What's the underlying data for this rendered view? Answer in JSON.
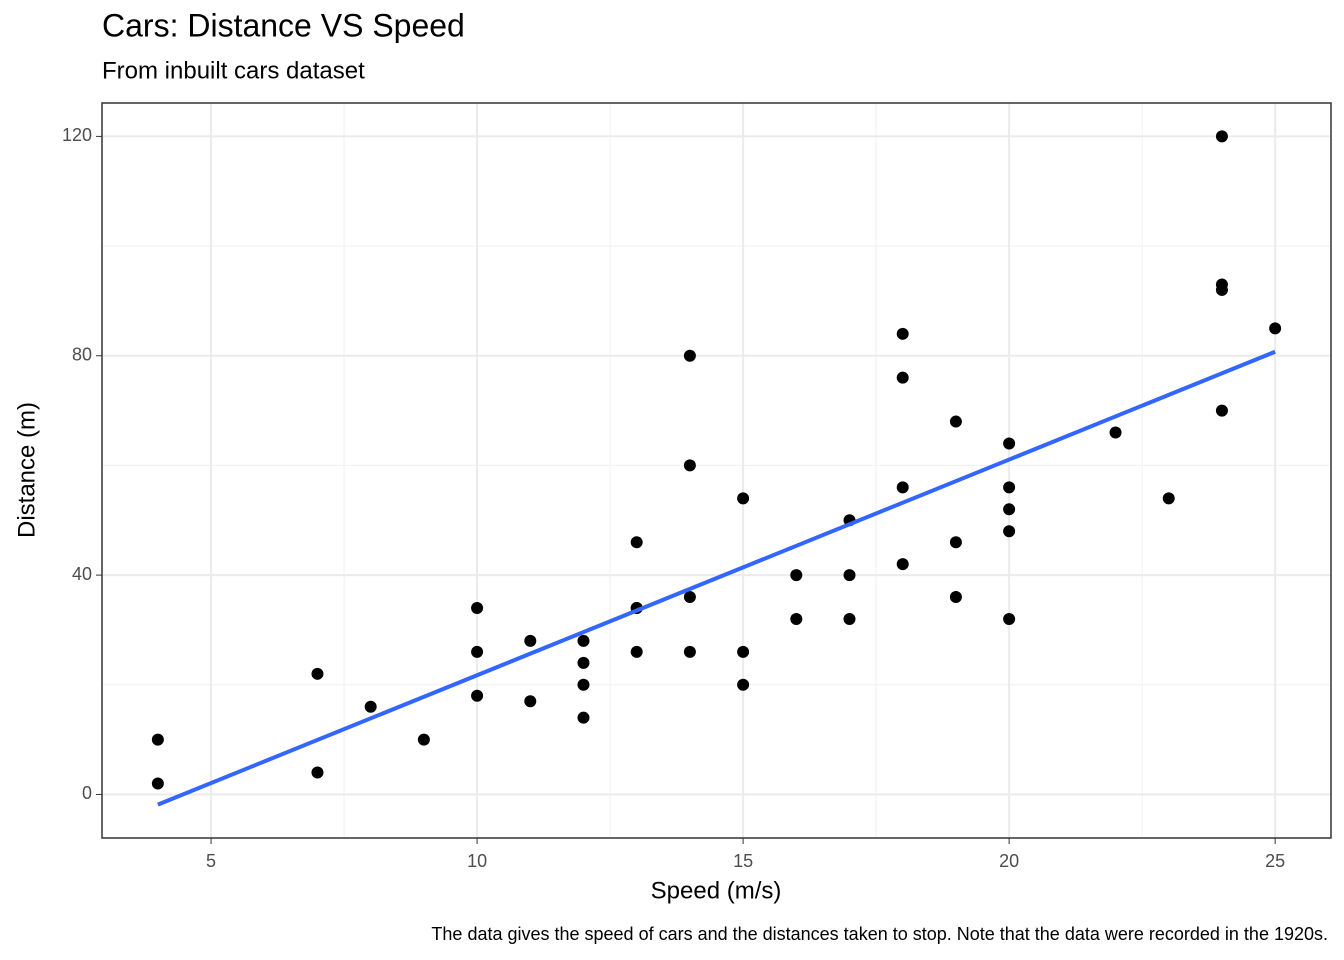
{
  "chart_data": {
    "type": "scatter",
    "title": "Cars: Distance VS Speed",
    "subtitle": "From inbuilt cars dataset",
    "xlabel": "Speed (m/s)",
    "ylabel": "Distance (m)",
    "caption": "The data gives the speed of cars and the distances taken to stop. Note that the data were recorded in the 1920s.",
    "x": [
      4,
      4,
      7,
      7,
      8,
      9,
      10,
      10,
      10,
      11,
      11,
      12,
      12,
      12,
      12,
      13,
      13,
      13,
      13,
      14,
      14,
      14,
      14,
      15,
      15,
      15,
      16,
      16,
      17,
      17,
      17,
      18,
      18,
      18,
      18,
      19,
      19,
      19,
      20,
      20,
      20,
      20,
      20,
      22,
      23,
      24,
      24,
      24,
      24,
      25
    ],
    "values": [
      2,
      10,
      4,
      22,
      16,
      10,
      18,
      26,
      34,
      17,
      28,
      14,
      20,
      24,
      28,
      26,
      34,
      34,
      46,
      26,
      36,
      60,
      80,
      20,
      26,
      54,
      32,
      40,
      32,
      40,
      50,
      42,
      56,
      76,
      84,
      36,
      46,
      68,
      32,
      48,
      52,
      56,
      64,
      66,
      54,
      70,
      92,
      93,
      120,
      85
    ],
    "color": "#000000",
    "fit": {
      "x": [
        4,
        25
      ],
      "values": [
        -1.85,
        80.73
      ],
      "color": "#3366ff"
    },
    "xlim": [
      2.95,
      26.05
    ],
    "ylim": [
      -7.94,
      126.09
    ],
    "xticks": [
      5,
      10,
      15,
      20,
      25
    ],
    "yticks": [
      0,
      40,
      80,
      120
    ],
    "x_minor_ticks": [
      7.5,
      12.5,
      17.5,
      22.5
    ],
    "y_minor_ticks": [
      20,
      60,
      100
    ],
    "grid": true
  }
}
